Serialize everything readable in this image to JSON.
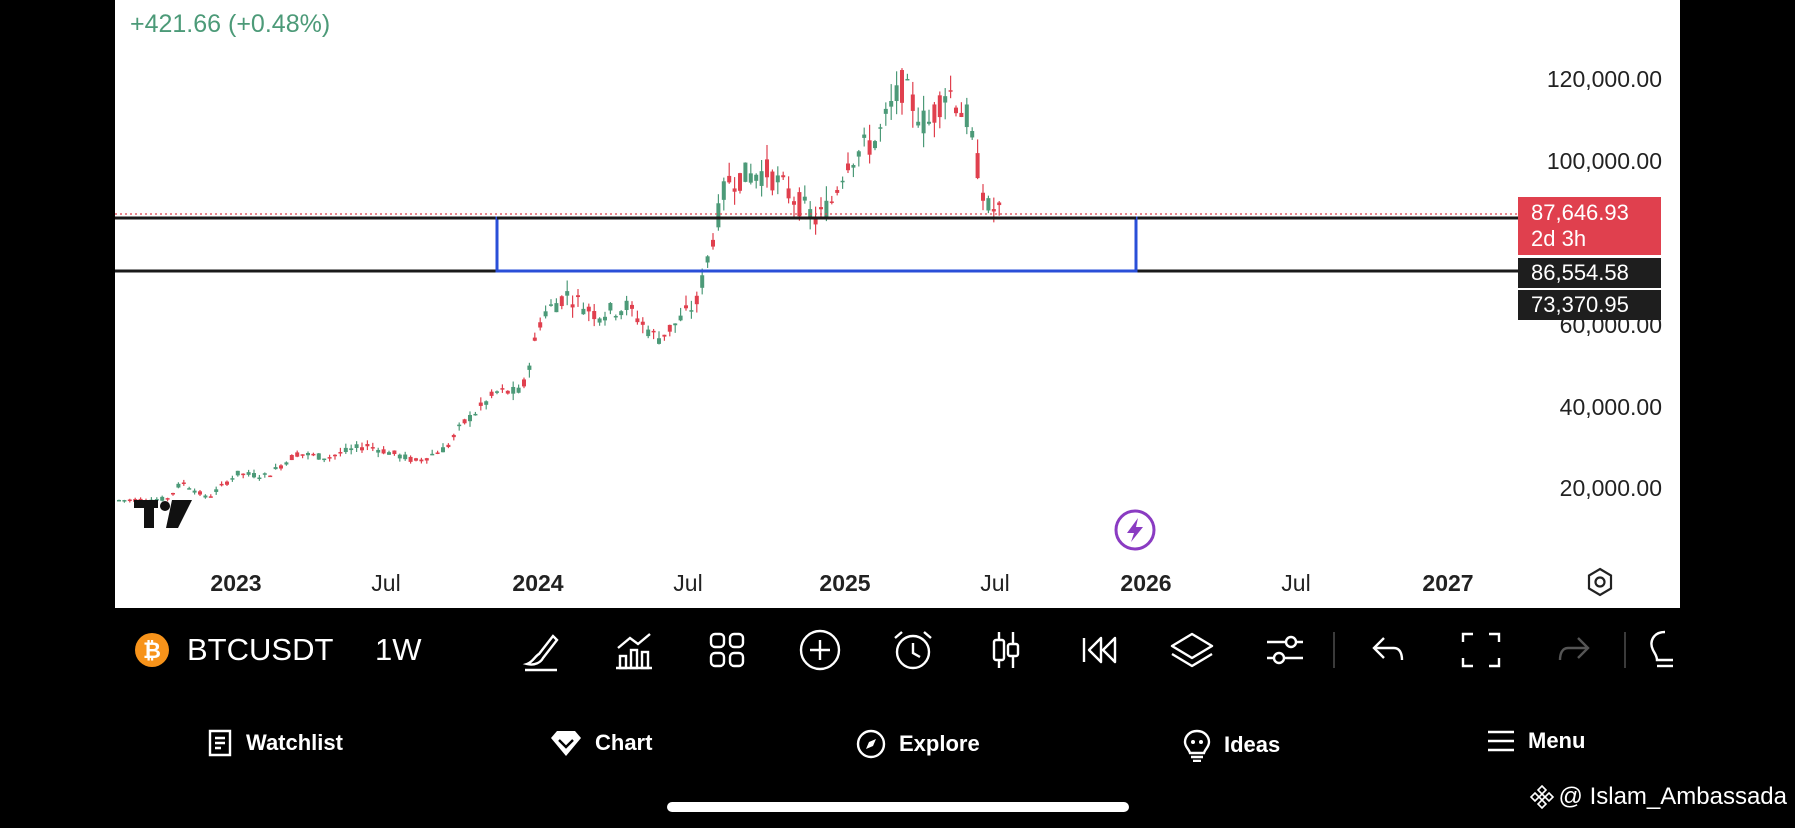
{
  "chart": {
    "change_text": "+421.66 (+0.48%)",
    "price_axis": [
      "120,000.00",
      "100,000.00",
      "60,000.00",
      "40,000.00",
      "20,000.00"
    ],
    "tags": {
      "current_price": "87,646.93",
      "countdown": "2d 3h",
      "level_upper": "86,554.58",
      "level_lower": "73,370.95"
    },
    "time_axis": [
      {
        "label": "2023",
        "bold": true
      },
      {
        "label": "Jul",
        "bold": false
      },
      {
        "label": "2024",
        "bold": true
      },
      {
        "label": "Jul",
        "bold": false
      },
      {
        "label": "2025",
        "bold": true
      },
      {
        "label": "Jul",
        "bold": false
      },
      {
        "label": "2026",
        "bold": true
      },
      {
        "label": "Jul",
        "bold": false
      },
      {
        "label": "2027",
        "bold": true
      }
    ],
    "colors": {
      "up": "#4c9a78",
      "down": "#e0404e",
      "range_box": "#2a4fd8",
      "level_line": "#1a1a1a",
      "event_icon": "#8a3bc2"
    }
  },
  "toolbar": {
    "symbol": "BTCUSDT",
    "interval": "1W",
    "tools": [
      "brush-icon",
      "indicators-icon",
      "layout-grid-icon",
      "add-icon",
      "alert-clock-icon",
      "candles-icon",
      "replay-icon",
      "layers-icon",
      "settings-sliders-icon",
      "undo-icon",
      "fullscreen-icon",
      "redo-icon",
      "ideas-icon"
    ]
  },
  "bottom_nav": {
    "items": [
      {
        "label": "Watchlist",
        "icon": "watchlist-icon"
      },
      {
        "label": "Chart",
        "icon": "chart-diamond-icon"
      },
      {
        "label": "Explore",
        "icon": "compass-icon"
      },
      {
        "label": "Ideas",
        "icon": "bulb-icon"
      },
      {
        "label": "Menu",
        "icon": "hamburger-icon"
      }
    ]
  },
  "watermark": "@ Islam_Ambassada"
}
